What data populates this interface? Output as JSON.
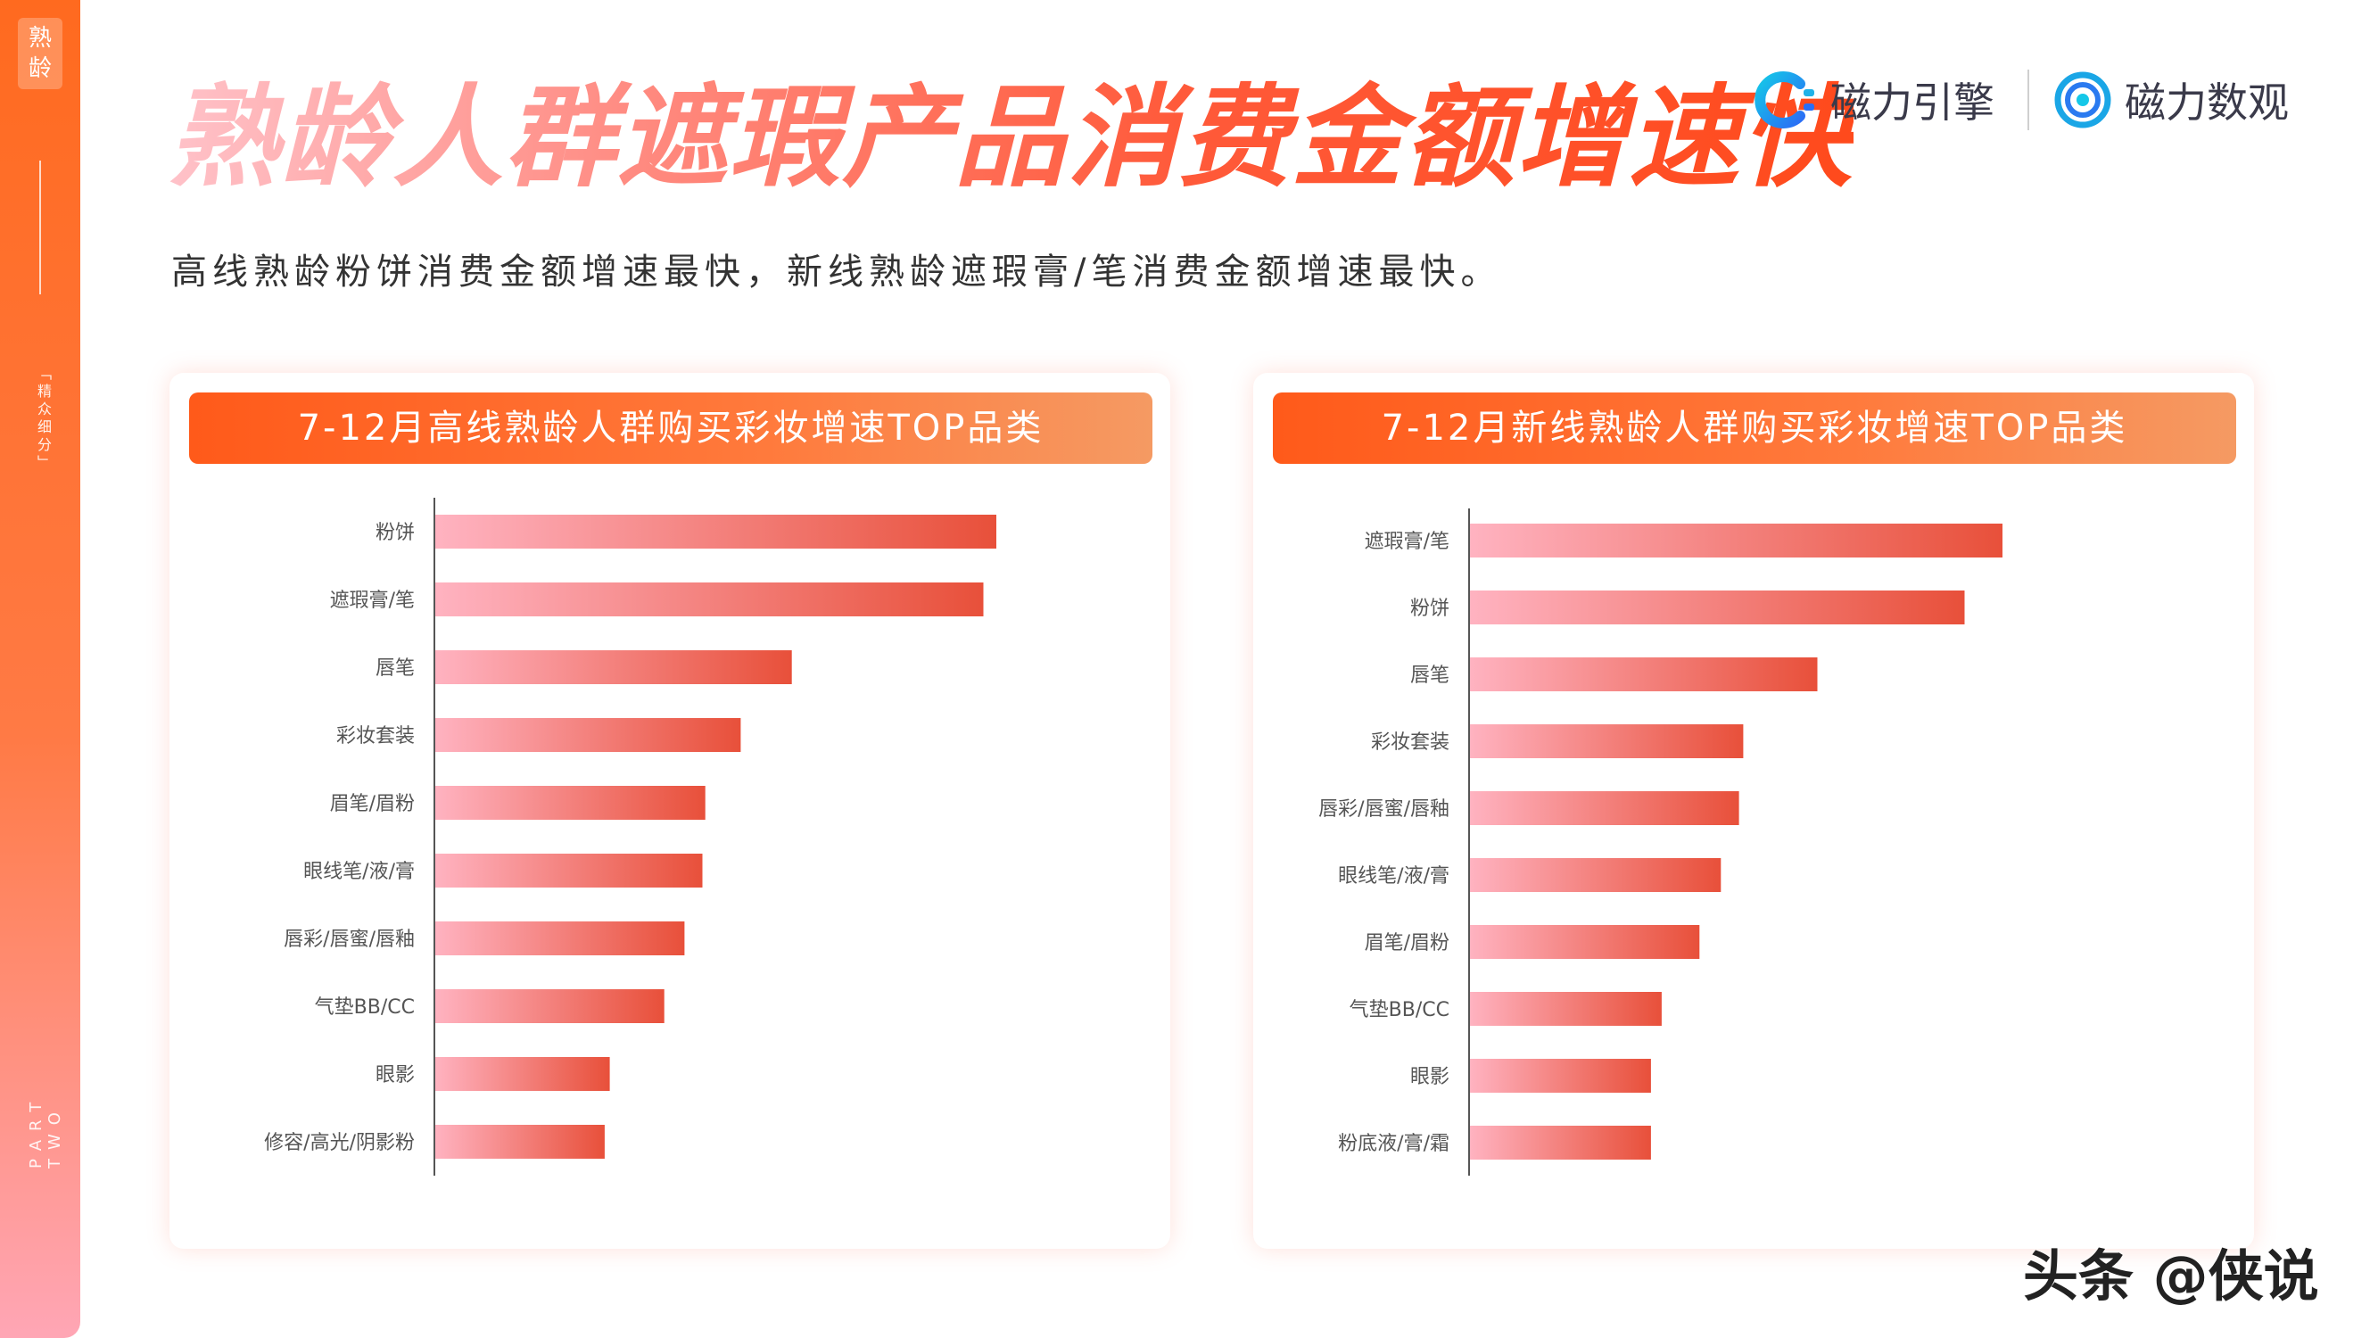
{
  "sidebar": {
    "badge": "熟龄",
    "subtitle": "「精众细分」",
    "part": "PART TWO"
  },
  "header": {
    "title": "熟龄人群遮瑕产品消费金额增速快",
    "subtitle": "高线熟龄粉饼消费金额增速最快，新线熟龄遮瑕膏/笔消费金额增速最快。",
    "logos": [
      {
        "name": "磁力引擎",
        "icon": "c-logo-icon"
      },
      {
        "name": "磁力数观",
        "icon": "ring-logo-icon"
      }
    ]
  },
  "colors": {
    "accent": "#ff5a1a",
    "bar_start": "#ffb3c1",
    "bar_end": "#e8503a"
  },
  "chart_data": [
    {
      "type": "bar",
      "orientation": "horizontal",
      "title": "7-12月高线熟龄人群购买彩妆增速TOP品类",
      "categories": [
        "粉饼",
        "遮瑕膏/笔",
        "唇笔",
        "彩妆套装",
        "眉笔/眉粉",
        "眼线笔/液/膏",
        "唇彩/唇蜜/唇釉",
        "气垫BB/CC",
        "眼影",
        "修容/高光/阴影粉"
      ],
      "values": [
        100,
        97.7,
        63.6,
        54.5,
        48.2,
        47.7,
        44.5,
        40.9,
        31.2,
        30.3
      ],
      "value_unit": "relative growth (no axis scale shown; longest bar = 100)",
      "xlabel": "",
      "ylabel": "",
      "grid": false,
      "legend": false
    },
    {
      "type": "bar",
      "orientation": "horizontal",
      "title": "7-12月新线熟龄人群购买彩妆增速TOP品类",
      "categories": [
        "遮瑕膏/笔",
        "粉饼",
        "唇笔",
        "彩妆套装",
        "唇彩/唇蜜/唇釉",
        "眼线笔/液/膏",
        "眉笔/眉粉",
        "气垫BB/CC",
        "眼影",
        "粉底液/膏/霜"
      ],
      "values": [
        100,
        92.9,
        65.3,
        51.4,
        50.6,
        47.2,
        43.2,
        36.1,
        34.1,
        34.1
      ],
      "value_unit": "relative growth (no axis scale shown; longest bar = 100)",
      "xlabel": "",
      "ylabel": "",
      "grid": false,
      "legend": false
    }
  ],
  "watermark": "头条 @侠说"
}
